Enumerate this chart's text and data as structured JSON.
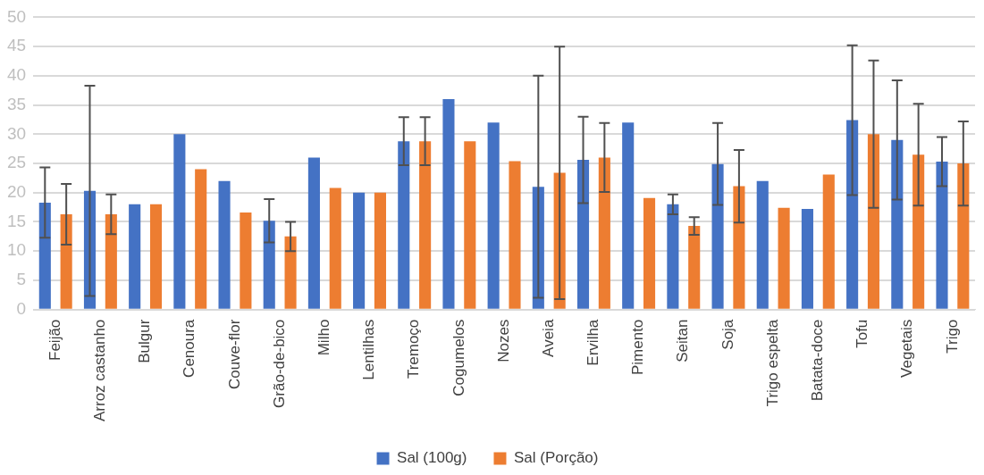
{
  "chart_data": {
    "type": "bar",
    "categories": [
      "Feijão",
      "Arroz castanho",
      "Bulgur",
      "Cenoura",
      "Couve-flor",
      "Grão-de-bico",
      "Milho",
      "Lentilhas",
      "Tremoço",
      "Cogumelos",
      "Nozes",
      "Aveia",
      "Ervilha",
      "Pimento",
      "Seitan",
      "Soja",
      "Trigo espelta",
      "Batata-doce",
      "Tofu",
      "Vegetais",
      "Trigo"
    ],
    "series": [
      {
        "name": "Sal (100g)",
        "color": "#4472c4",
        "values": [
          18.3,
          20.3,
          18,
          30,
          22,
          15.2,
          26,
          20,
          28.8,
          36,
          32,
          21,
          25.6,
          32,
          18,
          24.9,
          22,
          17.2,
          32.4,
          29,
          25.3
        ],
        "errors": [
          6,
          18,
          null,
          null,
          null,
          3.7,
          null,
          null,
          4.1,
          null,
          null,
          19,
          7.4,
          null,
          1.7,
          7,
          null,
          null,
          12.8,
          10.2,
          4.2
        ]
      },
      {
        "name": "Sal (Porção)",
        "color": "#ed7d31",
        "values": [
          16.3,
          16.3,
          18,
          24,
          16.6,
          12.5,
          20.8,
          20,
          28.8,
          28.8,
          25.4,
          23.4,
          26,
          19.1,
          14.3,
          21.1,
          17.4,
          23.1,
          30,
          26.5,
          25
        ],
        "errors": [
          5.2,
          3.4,
          null,
          null,
          null,
          2.5,
          null,
          null,
          4.1,
          null,
          null,
          21.6,
          5.9,
          null,
          1.5,
          6.2,
          null,
          null,
          12.6,
          8.7,
          7.2
        ]
      }
    ],
    "ylim": [
      0,
      50
    ],
    "yticks": [
      0,
      5,
      10,
      15,
      20,
      25,
      30,
      35,
      40,
      45,
      50
    ],
    "grid": "y",
    "legend": "bottom"
  }
}
